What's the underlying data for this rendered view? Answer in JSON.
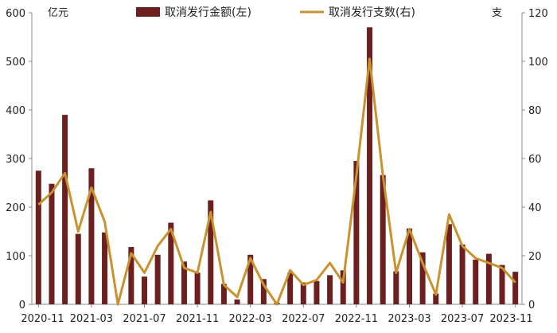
{
  "chart_data": {
    "type": "bar+line",
    "categories": [
      "2020-11",
      "2020-12",
      "2021-01",
      "2021-02",
      "2021-03",
      "2021-04",
      "2021-05",
      "2021-06",
      "2021-07",
      "2021-08",
      "2021-09",
      "2021-10",
      "2021-11",
      "2021-12",
      "2022-01",
      "2022-02",
      "2022-03",
      "2022-04",
      "2022-05",
      "2022-06",
      "2022-07",
      "2022-08",
      "2022-09",
      "2022-10",
      "2022-11",
      "2022-12",
      "2023-01",
      "2023-02",
      "2023-03",
      "2023-04",
      "2023-05",
      "2023-06",
      "2023-07",
      "2023-08",
      "2023-09",
      "2023-10",
      "2023-11"
    ],
    "x_tick_labels": [
      "2020-11",
      "2021-03",
      "2021-07",
      "2021-11",
      "2022-03",
      "2022-07",
      "2022-11",
      "2023-03",
      "2023-07",
      "2023-11"
    ],
    "y_left": {
      "unit": "亿元",
      "ylim": [
        0,
        600
      ],
      "ticks": [
        "0",
        "100",
        "200",
        "300",
        "400",
        "500",
        "600"
      ]
    },
    "y_right": {
      "unit": "支",
      "ylim": [
        0,
        120
      ],
      "ticks": [
        "0",
        "20",
        "40",
        "60",
        "80",
        "100",
        "120"
      ]
    },
    "series": [
      {
        "name": "取消发行金额(左)",
        "type": "bar",
        "axis": "left",
        "color": "#6b1f1f",
        "values": [
          275,
          248,
          390,
          145,
          280,
          148,
          0,
          118,
          57,
          102,
          168,
          88,
          65,
          214,
          42,
          10,
          102,
          52,
          3,
          65,
          45,
          48,
          60,
          70,
          295,
          570,
          266,
          68,
          156,
          107,
          22,
          165,
          123,
          92,
          104,
          81,
          67
        ]
      },
      {
        "name": "取消发行支数(右)",
        "type": "line",
        "axis": "right",
        "color": "#c9922f",
        "values": [
          41,
          46,
          54,
          30,
          48,
          34,
          0,
          21,
          13,
          24,
          31,
          15,
          13,
          38,
          8,
          3,
          19,
          8,
          0,
          14,
          8,
          10,
          17,
          9,
          53,
          101,
          53,
          13,
          31,
          17,
          4,
          37,
          24,
          19,
          17,
          15,
          9
        ]
      }
    ],
    "legend_placement": "top",
    "grid": false
  }
}
